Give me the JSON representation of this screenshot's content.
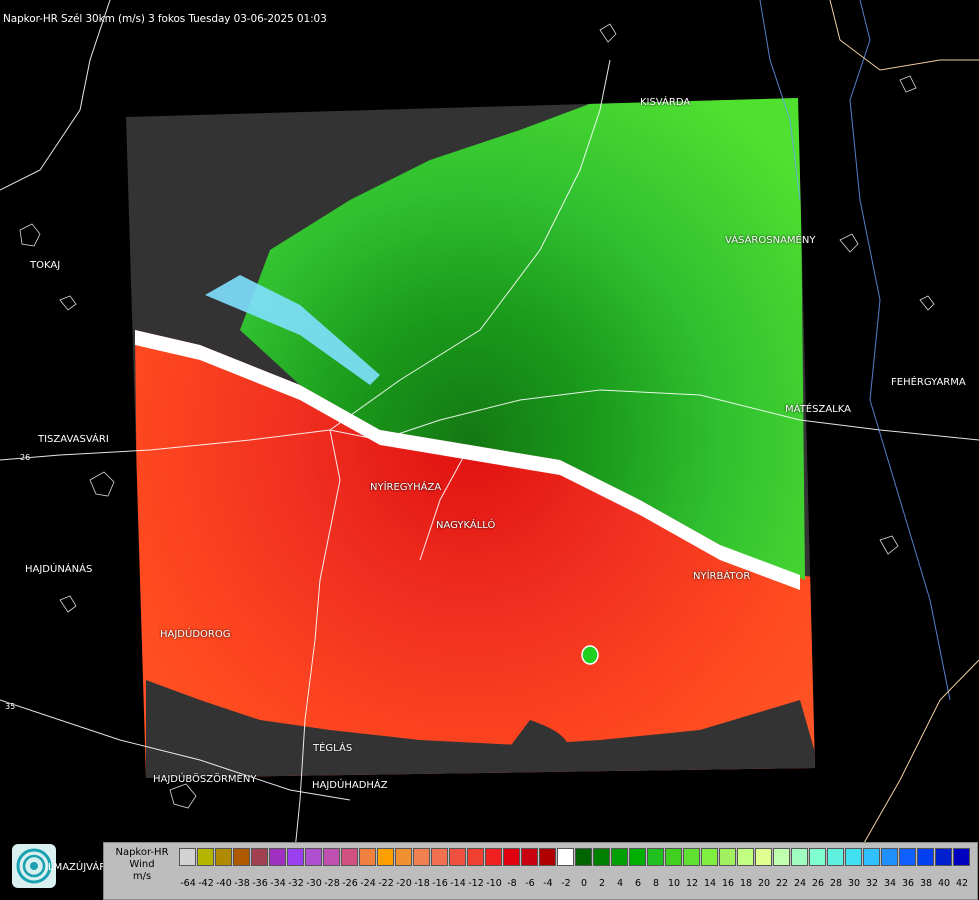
{
  "header": {
    "title": "Napkor-HR Szél 30km (m/s) 3 fokos Tuesday 03-06-2025 01:03"
  },
  "cities": [
    {
      "name": "KISVÁRDA",
      "key": "kisvarda"
    },
    {
      "name": "TOKAJ",
      "key": "tokaj"
    },
    {
      "name": "VÁSÁROSNAMÉNY",
      "key": "vasarosnameny"
    },
    {
      "name": "FEHÉRGYARMA",
      "key": "fehergyarmat"
    },
    {
      "name": "MÁTÉSZALKA",
      "key": "mateszalka"
    },
    {
      "name": "TISZAVASVÁRI",
      "key": "tiszavasvari"
    },
    {
      "name": "NYÍREGYHÁZA",
      "key": "nyiregyhaza"
    },
    {
      "name": "NAGYKÁLLÓ",
      "key": "nagykallo"
    },
    {
      "name": "HAJDÚNÁNÁS",
      "key": "hajdunanas"
    },
    {
      "name": "NYÍRBÁTOR",
      "key": "nyirbator"
    },
    {
      "name": "HAJDÚDOROG",
      "key": "hajdudorog"
    },
    {
      "name": "TÉGLÁS",
      "key": "teglas"
    },
    {
      "name": "HAJDÚBÖSZÖRMÉNY",
      "key": "hajduboszormeny"
    },
    {
      "name": "HAJDÚHADHÁZ",
      "key": "hajduhadhaz"
    },
    {
      "name": "LMAZÚJVÁR",
      "key": "balmazujvaros"
    }
  ],
  "road_labels": [
    "26",
    "35"
  ],
  "legend": {
    "line1": "Napkor-HR",
    "line2": "Wind",
    "line3": "m/s",
    "ticks": [
      "-64",
      "-42",
      "-40",
      "-38",
      "-36",
      "-34",
      "-32",
      "-30",
      "-28",
      "-26",
      "-24",
      "-22",
      "-20",
      "-18",
      "-16",
      "-14",
      "-12",
      "-10",
      "-8",
      "-6",
      "-4",
      "-2",
      "0",
      "2",
      "4",
      "6",
      "8",
      "10",
      "12",
      "14",
      "16",
      "18",
      "20",
      "22",
      "24",
      "26",
      "28",
      "30",
      "32",
      "34",
      "36",
      "38",
      "40",
      "42"
    ],
    "colors": [
      "#d3d3d3",
      "#b5b500",
      "#b08a00",
      "#b05a00",
      "#a04050",
      "#a030c0",
      "#9a40f0",
      "#b050d0",
      "#c050b0",
      "#d05080",
      "#f08040",
      "#ff9f00",
      "#f09030",
      "#f08050",
      "#f07050",
      "#f05040",
      "#f04030",
      "#f02020",
      "#e00010",
      "#c80010",
      "#b00000",
      "#ffffff",
      "#006400",
      "#008000",
      "#00a000",
      "#00b000",
      "#20c020",
      "#40d020",
      "#60e030",
      "#80f040",
      "#a0f060",
      "#c0ff80",
      "#e0ff90",
      "#c0ffb0",
      "#a0ffc0",
      "#80ffd0",
      "#60f0e0",
      "#40e0f0",
      "#30c0ff",
      "#2090ff",
      "#1060ff",
      "#0040f0",
      "#0020d0",
      "#0000c0"
    ]
  },
  "colors": {
    "background": "#000000",
    "no_data": "#333333",
    "outline": "#ffffff"
  }
}
